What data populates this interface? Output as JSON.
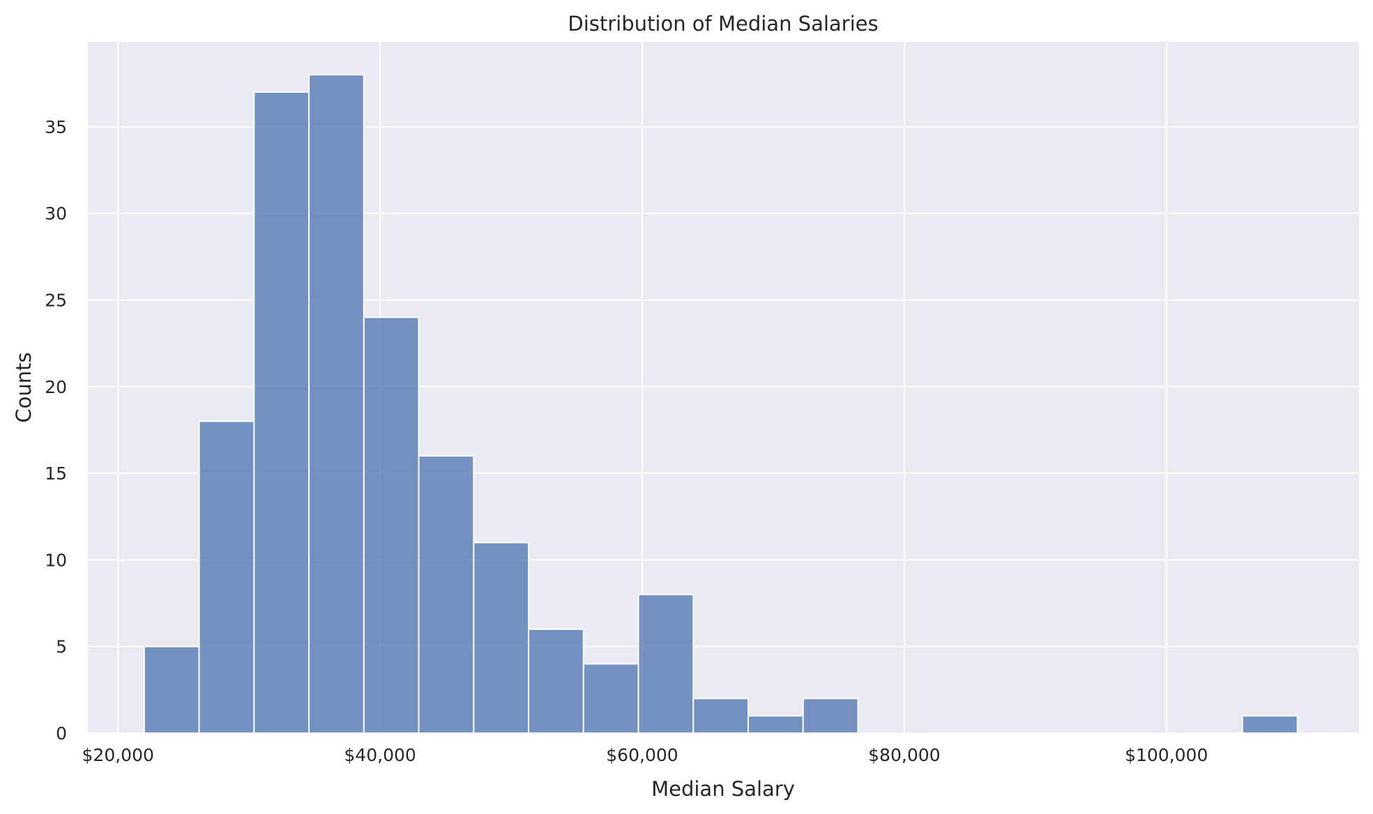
{
  "chart_data": {
    "type": "bar",
    "title": "Distribution of Median Salaries",
    "xlabel": "Median Salary",
    "ylabel": "Counts",
    "xlim": [
      17700,
      114700
    ],
    "ylim": [
      0,
      39.9
    ],
    "grid": true,
    "legend": "none",
    "xticks": [
      {
        "value": 20000,
        "label": "$20,000"
      },
      {
        "value": 40000,
        "label": "$40,000"
      },
      {
        "value": 60000,
        "label": "$60,000"
      },
      {
        "value": 80000,
        "label": "$80,000"
      },
      {
        "value": 100000,
        "label": "$100,000"
      }
    ],
    "yticks": [
      {
        "value": 0,
        "label": "0"
      },
      {
        "value": 5,
        "label": "5"
      },
      {
        "value": 10,
        "label": "10"
      },
      {
        "value": 15,
        "label": "15"
      },
      {
        "value": 20,
        "label": "20"
      },
      {
        "value": 25,
        "label": "25"
      },
      {
        "value": 30,
        "label": "30"
      },
      {
        "value": 35,
        "label": "35"
      }
    ],
    "bins": [
      {
        "x0": 22000,
        "x1": 26190,
        "count": 5
      },
      {
        "x0": 26190,
        "x1": 30380,
        "count": 18
      },
      {
        "x0": 30380,
        "x1": 34570,
        "count": 37
      },
      {
        "x0": 34570,
        "x1": 38760,
        "count": 38
      },
      {
        "x0": 38760,
        "x1": 42950,
        "count": 24
      },
      {
        "x0": 42950,
        "x1": 47140,
        "count": 16
      },
      {
        "x0": 47140,
        "x1": 51330,
        "count": 11
      },
      {
        "x0": 51330,
        "x1": 55520,
        "count": 6
      },
      {
        "x0": 55520,
        "x1": 59710,
        "count": 4
      },
      {
        "x0": 59710,
        "x1": 63900,
        "count": 8
      },
      {
        "x0": 63900,
        "x1": 68090,
        "count": 2
      },
      {
        "x0": 68090,
        "x1": 72280,
        "count": 1
      },
      {
        "x0": 72280,
        "x1": 76470,
        "count": 2
      },
      {
        "x0": 76470,
        "x1": 80660,
        "count": 0
      },
      {
        "x0": 80660,
        "x1": 84850,
        "count": 0
      },
      {
        "x0": 84850,
        "x1": 89040,
        "count": 0
      },
      {
        "x0": 89040,
        "x1": 93230,
        "count": 0
      },
      {
        "x0": 93230,
        "x1": 97420,
        "count": 0
      },
      {
        "x0": 97420,
        "x1": 101610,
        "count": 0
      },
      {
        "x0": 101610,
        "x1": 105800,
        "count": 0
      },
      {
        "x0": 105800,
        "x1": 110000,
        "count": 1
      }
    ],
    "colors": {
      "bar": "#4c72b0",
      "plot_background": "#eaeaf2",
      "grid": "#ffffff"
    }
  }
}
